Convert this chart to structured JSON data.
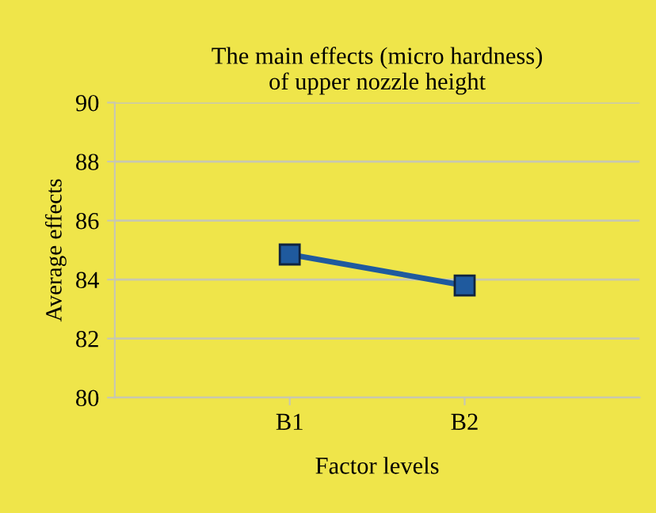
{
  "chart_data": {
    "type": "line",
    "title": "The main effects (micro hardness)\nof upper nozzle height",
    "xlabel": "Factor levels",
    "ylabel": "Average effects",
    "categories": [
      "B1",
      "B2"
    ],
    "series": [
      {
        "color": "#1f5a9e",
        "values": [
          84.85,
          83.8
        ]
      }
    ],
    "marker": "square",
    "line_style": "solid",
    "ylim": [
      80,
      90
    ],
    "yticks": [
      80,
      82,
      84,
      86,
      88,
      90
    ],
    "grid": "y"
  }
}
